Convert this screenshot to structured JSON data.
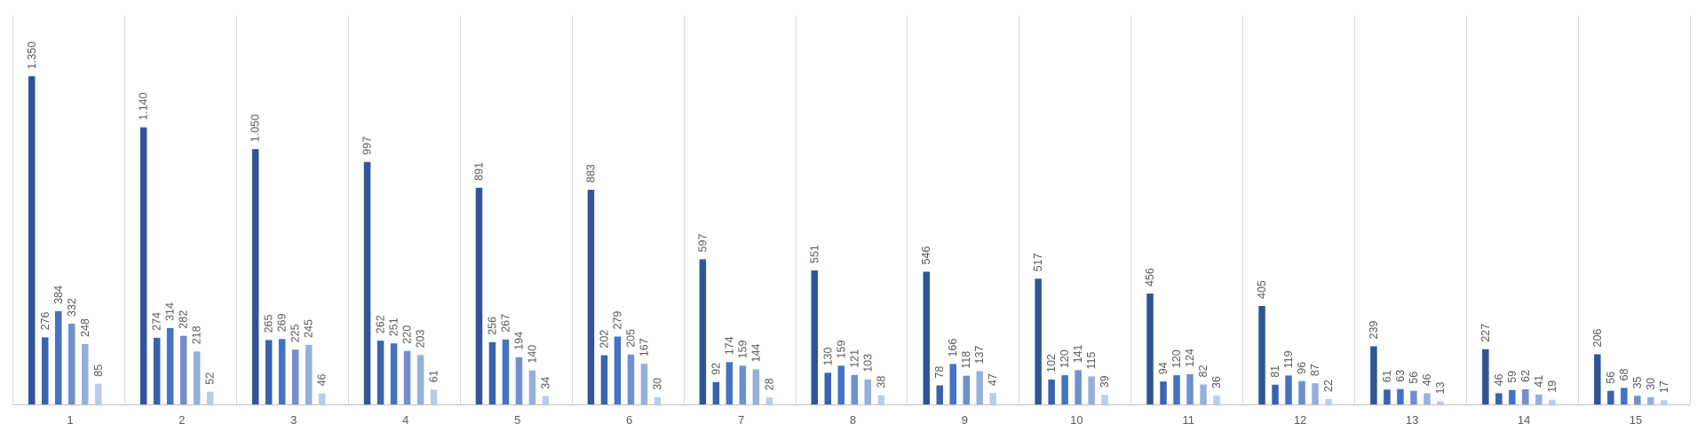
{
  "chart_data": {
    "type": "bar",
    "title": "",
    "xlabel": "",
    "ylabel": "",
    "ylim": [
      0,
      1400
    ],
    "grid": false,
    "legend": "none",
    "categories": [
      "1",
      "2",
      "3",
      "4",
      "5",
      "6",
      "7",
      "8",
      "9",
      "10",
      "11",
      "12",
      "13",
      "14",
      "15"
    ],
    "category_label_format": "thousands-dot",
    "series": [
      {
        "color": "#2f5597",
        "values": [
          1350,
          1140,
          1050,
          997,
          891,
          883,
          597,
          551,
          546,
          517,
          456,
          405,
          239,
          227,
          206
        ]
      },
      {
        "color": "#3a62ad",
        "values": [
          276,
          274,
          265,
          262,
          256,
          202,
          92,
          130,
          78,
          102,
          94,
          81,
          61,
          46,
          56
        ]
      },
      {
        "color": "#4472c4",
        "values": [
          384,
          314,
          269,
          251,
          267,
          279,
          174,
          159,
          166,
          120,
          120,
          119,
          63,
          59,
          68
        ]
      },
      {
        "color": "#6f8fd0",
        "values": [
          332,
          282,
          225,
          220,
          194,
          205,
          159,
          121,
          118,
          141,
          124,
          96,
          56,
          62,
          35
        ]
      },
      {
        "color": "#97afdd",
        "values": [
          248,
          218,
          245,
          203,
          140,
          167,
          144,
          103,
          137,
          115,
          82,
          87,
          46,
          41,
          30
        ]
      },
      {
        "color": "#bccbea",
        "values": [
          85,
          52,
          46,
          61,
          34,
          30,
          28,
          38,
          47,
          39,
          36,
          22,
          13,
          19,
          17
        ]
      }
    ]
  }
}
